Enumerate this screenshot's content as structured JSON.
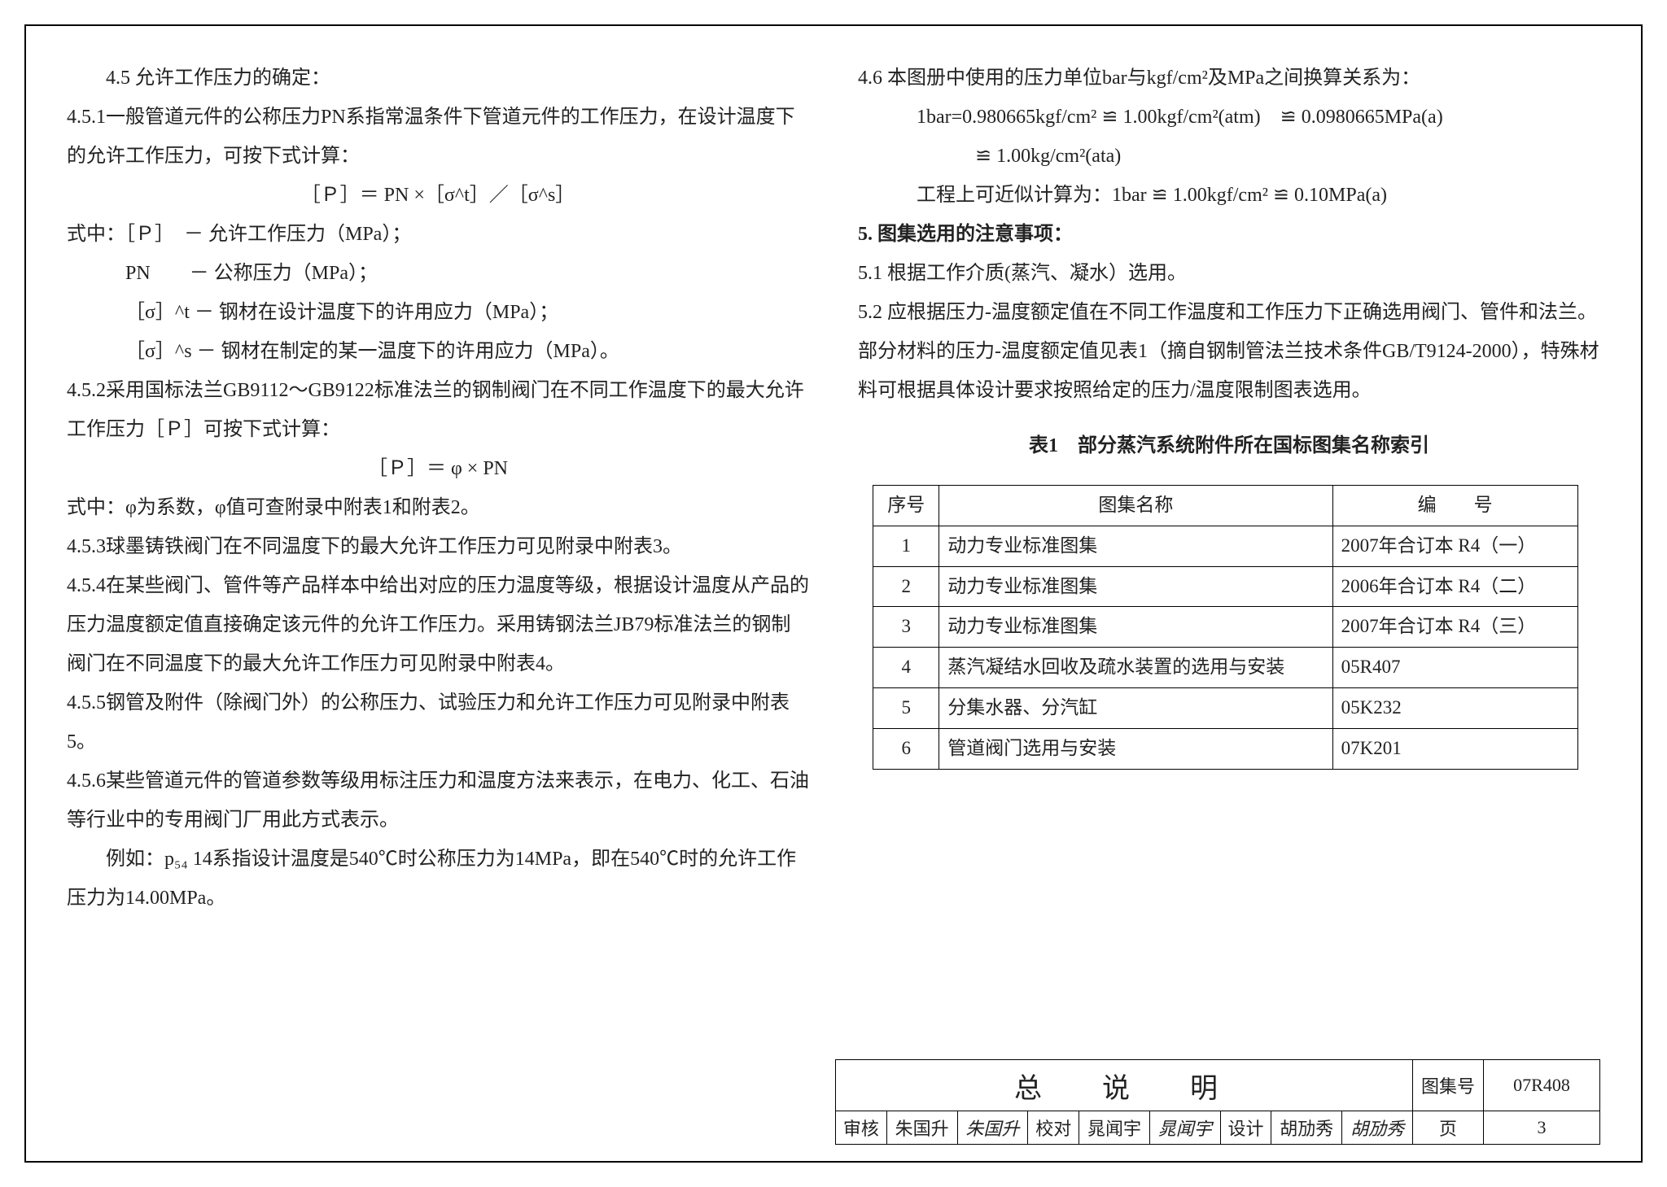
{
  "left": {
    "h45": "4.5 允许工作压力的确定：",
    "p451": "4.5.1一般管道元件的公称压力PN系指常温条件下管道元件的工作压力，在设计温度下的允许工作压力，可按下式计算：",
    "f1": "［Ｐ］＝ PN ×［σ^t］／［σ^s］",
    "def0": "式中：［Ｐ］　－ 允许工作压力（MPa）；",
    "def1": "PN　　－ 公称压力（MPa）；",
    "def2": "［σ］^t － 钢材在设计温度下的许用应力（MPa）；",
    "def3": "［σ］^s － 钢材在制定的某一温度下的许用应力（MPa）。",
    "p452": "4.5.2采用国标法兰GB9112～GB9122标准法兰的钢制阀门在不同工作温度下的最大允许工作压力［Ｐ］可按下式计算：",
    "f2": "［Ｐ］＝ φ × PN",
    "p452b": "式中：φ为系数，φ值可查附录中附表1和附表2。",
    "p453": "4.5.3球墨铸铁阀门在不同温度下的最大允许工作压力可见附录中附表3。",
    "p454": "4.5.4在某些阀门、管件等产品样本中给出对应的压力温度等级，根据设计温度从产品的压力温度额定值直接确定该元件的允许工作压力。采用铸钢法兰JB79标准法兰的钢制阀门在不同温度下的最大允许工作压力可见附录中附表4。",
    "p455": "4.5.5钢管及附件（除阀门外）的公称压力、试验压力和允许工作压力可见附录中附表5。",
    "p456": "4.5.6某些管道元件的管道参数等级用标注压力和温度方法来表示，在电力、化工、石油等行业中的专用阀门厂用此方式表示。",
    "p456ex": "例如：p₅₄ 14系指设计温度是540℃时公称压力为14MPa，即在540℃时的允许工作压力为14.00MPa。"
  },
  "right": {
    "p46": "4.6 本图册中使用的压力单位bar与kgf/cm²及MPa之间换算关系为：",
    "p46a": "1bar=0.980665kgf/cm² ≌ 1.00kgf/cm²(atm)　≌ 0.0980665MPa(a)",
    "p46b": "≌ 1.00kg/cm²(ata)",
    "p46c": "工程上可近似计算为：1bar ≌ 1.00kgf/cm² ≌ 0.10MPa(a)",
    "h5": "5. 图集选用的注意事项：",
    "p51": "5.1 根据工作介质(蒸汽、凝水）选用。",
    "p52": "5.2 应根据压力-温度额定值在不同工作温度和工作压力下正确选用阀门、管件和法兰。部分材料的压力-温度额定值见表1（摘自钢制管法兰技术条件GB/T9124-2000），特殊材料可根据具体设计要求按照给定的压力/温度限制图表选用。",
    "tbl_cap": "表1　部分蒸汽系统附件所在国标图集名称索引"
  },
  "table1": {
    "cols": [
      "序号",
      "图集名称",
      "编　　号"
    ],
    "rows": [
      [
        "1",
        "动力专业标准图集",
        "2007年合订本 R4（一）"
      ],
      [
        "2",
        "动力专业标准图集",
        "2006年合订本 R4（二）"
      ],
      [
        "3",
        "动力专业标准图集",
        "2007年合订本 R4（三）"
      ],
      [
        "4",
        "蒸汽凝结水回收及疏水装置的选用与安装",
        "05R407"
      ],
      [
        "5",
        "分集水器、分汽缸",
        "05K232"
      ],
      [
        "6",
        "管道阀门选用与安装",
        "07K201"
      ]
    ],
    "col_widths": [
      "60px",
      "auto",
      "280px"
    ]
  },
  "titleblock": {
    "title": "总　说　明",
    "code_label": "图集号",
    "code": "07R408",
    "row2": {
      "l1": "审核",
      "n1": "朱国升",
      "s1": "朱国升",
      "l2": "校对",
      "n2": "晁闻宇",
      "s2": "晁闻宇",
      "l3": "设计",
      "n3": "胡劢秀",
      "s3": "胡劢秀",
      "page_label": "页",
      "page": "3"
    }
  }
}
